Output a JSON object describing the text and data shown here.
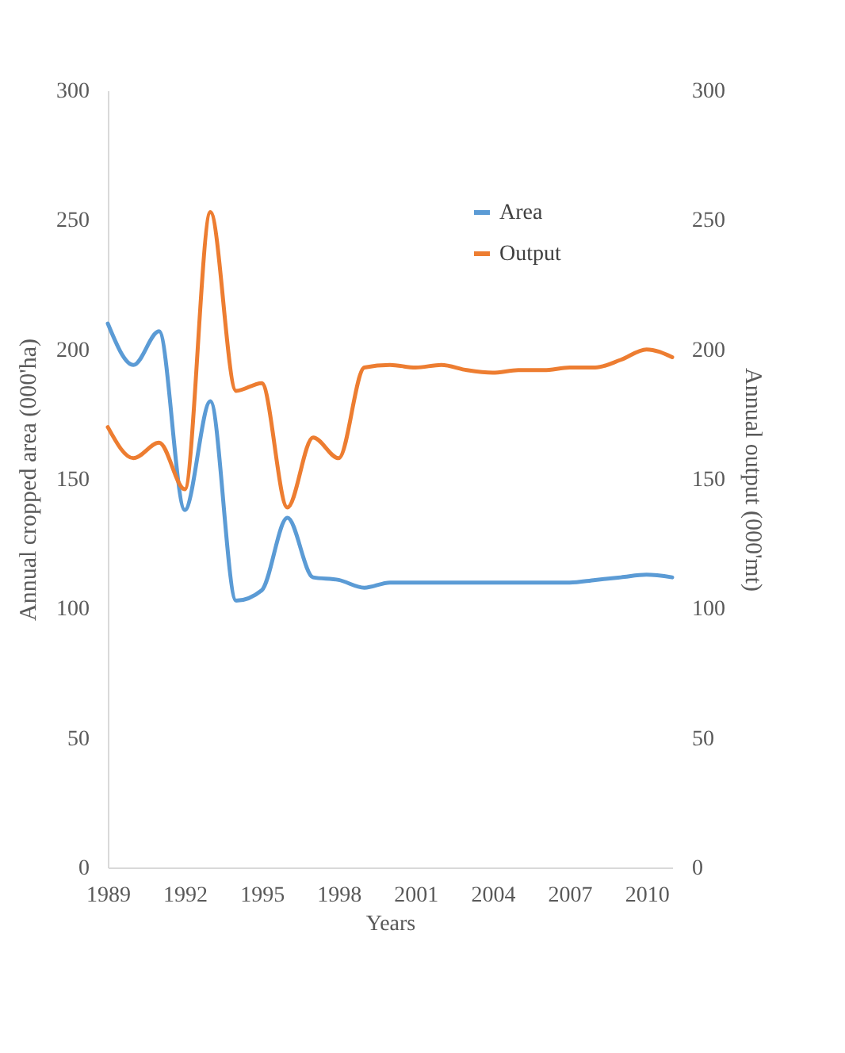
{
  "chart_data": {
    "type": "line",
    "xlabel": "Years",
    "ylabel": "Annual cropped area (000'ha)",
    "y2label": "Annual output (000'mt)",
    "x": [
      1989,
      1990,
      1991,
      1992,
      1993,
      1994,
      1995,
      1996,
      1997,
      1998,
      1999,
      2000,
      2001,
      2002,
      2003,
      2004,
      2005,
      2006,
      2007,
      2008,
      2009,
      2010,
      2011
    ],
    "series": [
      {
        "name": "Area",
        "color": "#5b9bd5",
        "values": [
          210,
          194,
          207,
          138,
          180,
          103,
          107,
          135,
          112,
          111,
          108,
          110,
          110,
          110,
          110,
          110,
          110,
          110,
          110,
          111,
          112,
          113,
          112
        ]
      },
      {
        "name": "Output",
        "color": "#ed7d31",
        "axis": "y2",
        "values": [
          170,
          158,
          164,
          146,
          253,
          184,
          187,
          139,
          166,
          158,
          193,
          194,
          193,
          194,
          192,
          191,
          192,
          192,
          193,
          193,
          196,
          200,
          197
        ]
      }
    ],
    "xlim": [
      1989,
      2011
    ],
    "xticks": [
      1989,
      1992,
      1995,
      1998,
      2001,
      2004,
      2007,
      2010
    ],
    "ylim": [
      0,
      300
    ],
    "yticks": [
      0,
      50,
      100,
      150,
      200,
      250,
      300
    ],
    "y2lim": [
      0,
      300
    ],
    "y2ticks": [
      0,
      50,
      100,
      150,
      200,
      250,
      300
    ],
    "grid": false,
    "legend": "top right",
    "marker": "none",
    "line_style": "solid"
  }
}
